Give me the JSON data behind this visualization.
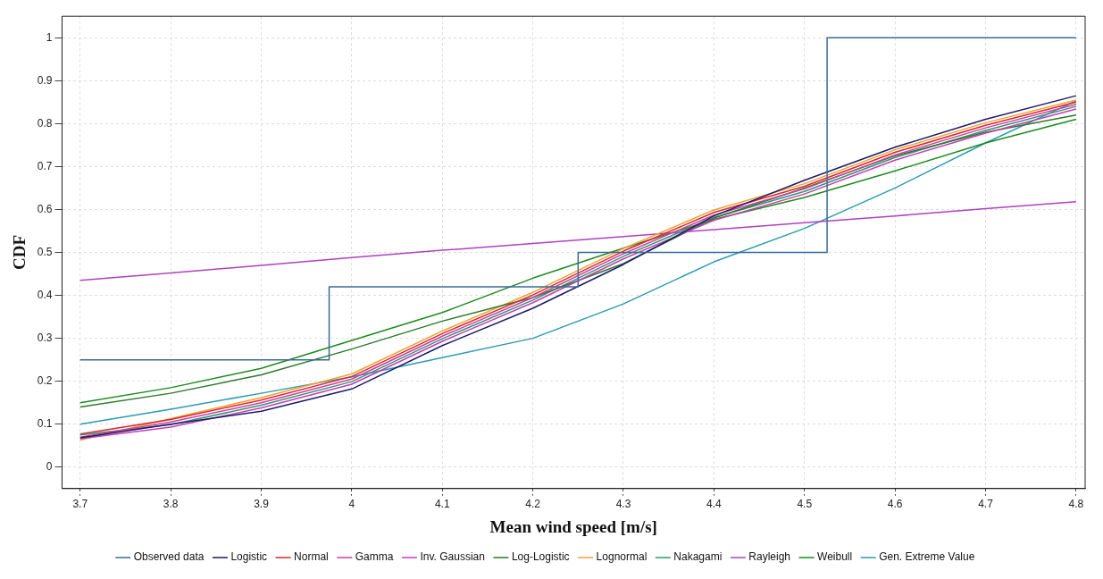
{
  "chart_data": {
    "type": "line",
    "xlabel": "Mean wind speed [m/s]",
    "ylabel": "CDF",
    "x": [
      3.7,
      3.8,
      3.9,
      4.0,
      4.1,
      4.2,
      4.3,
      4.4,
      4.5,
      4.6,
      4.7,
      4.8
    ],
    "xlim": [
      3.68,
      4.81
    ],
    "xticks": [
      3.7,
      3.8,
      3.9,
      4,
      4.1,
      4.2,
      4.3,
      4.4,
      4.5,
      4.6,
      4.7,
      4.8
    ],
    "ylim": [
      -0.05,
      1.05
    ],
    "yticks": [
      0,
      0.1,
      0.2,
      0.3,
      0.4,
      0.5,
      0.6,
      0.7,
      0.8,
      0.9,
      1
    ],
    "grid": true,
    "legend": "bottom",
    "marker": "none",
    "line_style": "solid",
    "series": [
      {
        "name": "Observed data",
        "type": "step",
        "color": "#3a6a96",
        "x": [
          3.7,
          3.975,
          4.25,
          4.525,
          4.8
        ],
        "values": [
          0.25,
          0.42,
          0.5,
          1,
          1
        ]
      },
      {
        "name": "Logistic",
        "color": "#1b1b6b",
        "values": [
          0.068,
          0.1,
          0.13,
          0.182,
          0.283,
          0.37,
          0.472,
          0.585,
          0.668,
          0.745,
          0.81,
          0.865
        ]
      },
      {
        "name": "Normal",
        "color": "#d42a2a",
        "values": [
          0.077,
          0.111,
          0.156,
          0.211,
          0.311,
          0.401,
          0.503,
          0.593,
          0.654,
          0.733,
          0.796,
          0.85
        ]
      },
      {
        "name": "Gamma",
        "color": "#d63aa8",
        "values": [
          0.07,
          0.105,
          0.15,
          0.205,
          0.305,
          0.395,
          0.497,
          0.587,
          0.648,
          0.727,
          0.79,
          0.845
        ]
      },
      {
        "name": "Inv. Gaussian",
        "color": "#cc3ab8",
        "values": [
          0.066,
          0.093,
          0.138,
          0.193,
          0.293,
          0.383,
          0.485,
          0.575,
          0.636,
          0.715,
          0.778,
          0.834
        ]
      },
      {
        "name": "Log-Logistic",
        "color": "#2a7a2a",
        "values": [
          0.14,
          0.172,
          0.215,
          0.275,
          0.34,
          0.395,
          0.474,
          0.58,
          0.65,
          0.725,
          0.78,
          0.82
        ]
      },
      {
        "name": "Lognormal",
        "color": "#f0a030",
        "values": [
          0.063,
          0.113,
          0.162,
          0.217,
          0.317,
          0.407,
          0.509,
          0.599,
          0.66,
          0.739,
          0.802,
          0.855
        ]
      },
      {
        "name": "Nakagami",
        "color": "#2a9a6a",
        "values": [
          0.075,
          0.099,
          0.144,
          0.199,
          0.299,
          0.389,
          0.491,
          0.581,
          0.642,
          0.721,
          0.784,
          0.84
        ]
      },
      {
        "name": "Rayleigh",
        "color": "#b040c0",
        "values": [
          0.435,
          0.452,
          0.47,
          0.488,
          0.505,
          0.521,
          0.537,
          0.553,
          0.569,
          0.585,
          0.602,
          0.618
        ]
      },
      {
        "name": "Weibull",
        "color": "#1e8a1e",
        "values": [
          0.15,
          0.185,
          0.23,
          0.295,
          0.36,
          0.44,
          0.51,
          0.577,
          0.628,
          0.69,
          0.755,
          0.81
        ]
      },
      {
        "name": "Gen. Extreme Value",
        "color": "#2a9ab5",
        "values": [
          0.1,
          0.135,
          0.172,
          0.21,
          0.255,
          0.3,
          0.38,
          0.478,
          0.556,
          0.65,
          0.755,
          0.853
        ]
      }
    ]
  }
}
